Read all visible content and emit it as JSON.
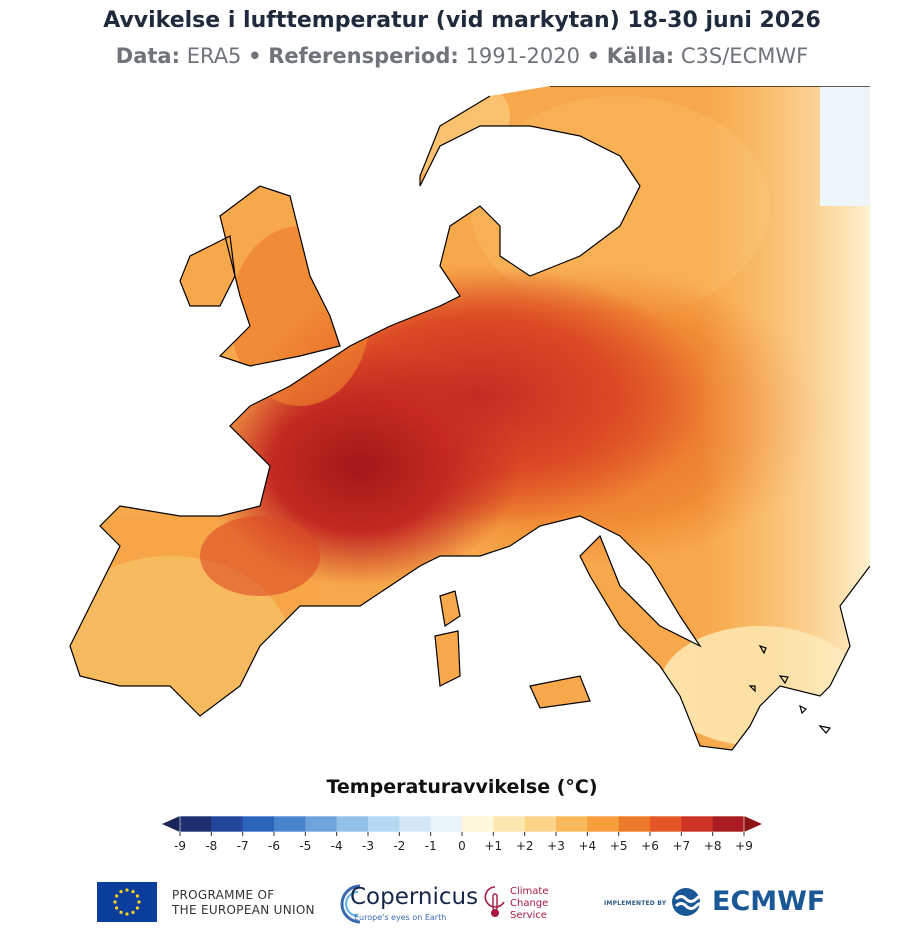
{
  "header": {
    "title": "Avvikelse i lufttemperatur (vid markytan) 18-30 juni 2026",
    "data_label": "Data",
    "data_value": "ERA5",
    "ref_label": "Referensperiod",
    "ref_value": "1991-2020",
    "source_label": "Källa",
    "source_value": "C3S/ECMWF",
    "separator": "•",
    "colon": ":"
  },
  "legend": {
    "title": "Temperaturavvikelse (°C)",
    "ticks": [
      "-9",
      "-8",
      "-7",
      "-6",
      "-5",
      "-4",
      "-3",
      "-2",
      "-1",
      "0",
      "+1",
      "+2",
      "+3",
      "+4",
      "+5",
      "+6",
      "+7",
      "+8",
      "+9"
    ],
    "colors": [
      "#1d2f6e",
      "#22479c",
      "#2c64bd",
      "#4a84cf",
      "#6fa3dc",
      "#92c0e8",
      "#b4d8f1",
      "#d2e7f6",
      "#e9f3fa",
      "#fff7dc",
      "#fde8b2",
      "#fbd488",
      "#f9ba5b",
      "#f59e3a",
      "#ef7b2a",
      "#e45827",
      "#cc3425",
      "#a81c22"
    ],
    "under_color": "#1a2457",
    "over_color": "#8f1414"
  },
  "map": {
    "region": "Europe",
    "ocean_color": "#ffffff",
    "coast_color": "#000000",
    "anomaly_hotspots": [
      {
        "place": "France",
        "anomaly": 8.5
      },
      {
        "place": "Germany",
        "anomaly": 7.0
      },
      {
        "place": "Poland",
        "anomaly": 6.5
      },
      {
        "place": "Italy",
        "anomaly": 5.0
      },
      {
        "place": "Iberia",
        "anomaly": 3.5
      },
      {
        "place": "Scandinavia",
        "anomaly": 3.0
      },
      {
        "place": "Greece",
        "anomaly": 2.0
      }
    ]
  },
  "footer": {
    "eu_line1": "PROGRAMME OF",
    "eu_line2": "THE EUROPEAN UNION",
    "copernicus": "Copernicus",
    "copernicus_tag": "Europe's eyes on Earth",
    "c3s_line1": "Climate",
    "c3s_line2": "Change Service",
    "implemented_by": "IMPLEMENTED BY",
    "ecmwf": "ECMWF"
  }
}
